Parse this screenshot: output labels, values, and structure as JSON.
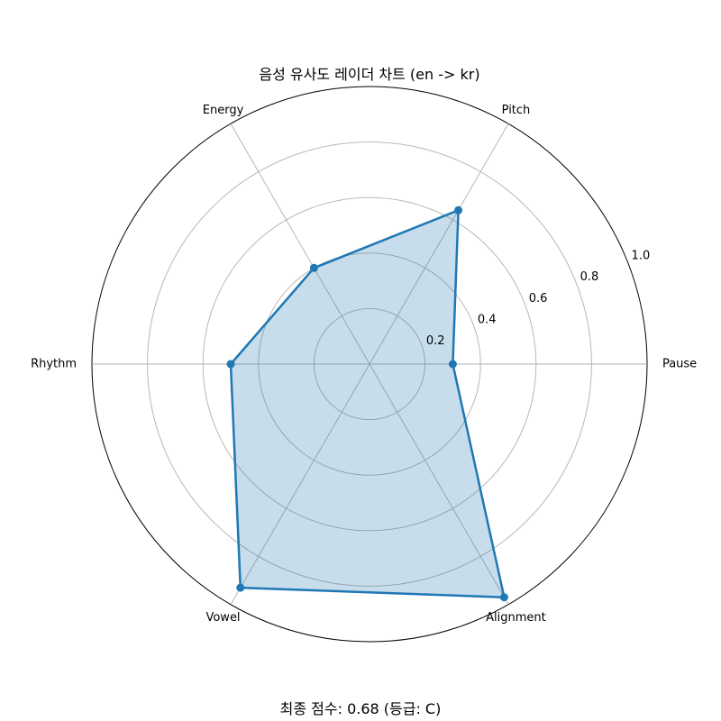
{
  "chart_data": {
    "type": "radar",
    "title": "음성 유사도 레이더 차트 (en -> kr)",
    "categories": [
      "Pause",
      "Pitch",
      "Energy",
      "Rhythm",
      "Vowel",
      "Alignment"
    ],
    "series": [
      {
        "values": [
          0.3,
          0.64,
          0.4,
          0.5,
          0.93,
          0.97
        ],
        "color": "#1f77b4",
        "fill_color": "#1f77b4",
        "fill_opacity": 0.25
      }
    ],
    "rlim": [
      0,
      1.0
    ],
    "r_ticks": [
      0.2,
      0.4,
      0.6,
      0.8,
      1.0
    ],
    "r_tick_labels": [
      "0.2",
      "0.4",
      "0.6",
      "0.8",
      "1.0"
    ],
    "grid": true,
    "legend": "none"
  },
  "footer": {
    "score_text": "최종 점수: 0.68 (등급: C)"
  },
  "colors": {
    "grid": "#b0b0b0",
    "outer_ring": "#000000",
    "series": "#1f77b4"
  }
}
